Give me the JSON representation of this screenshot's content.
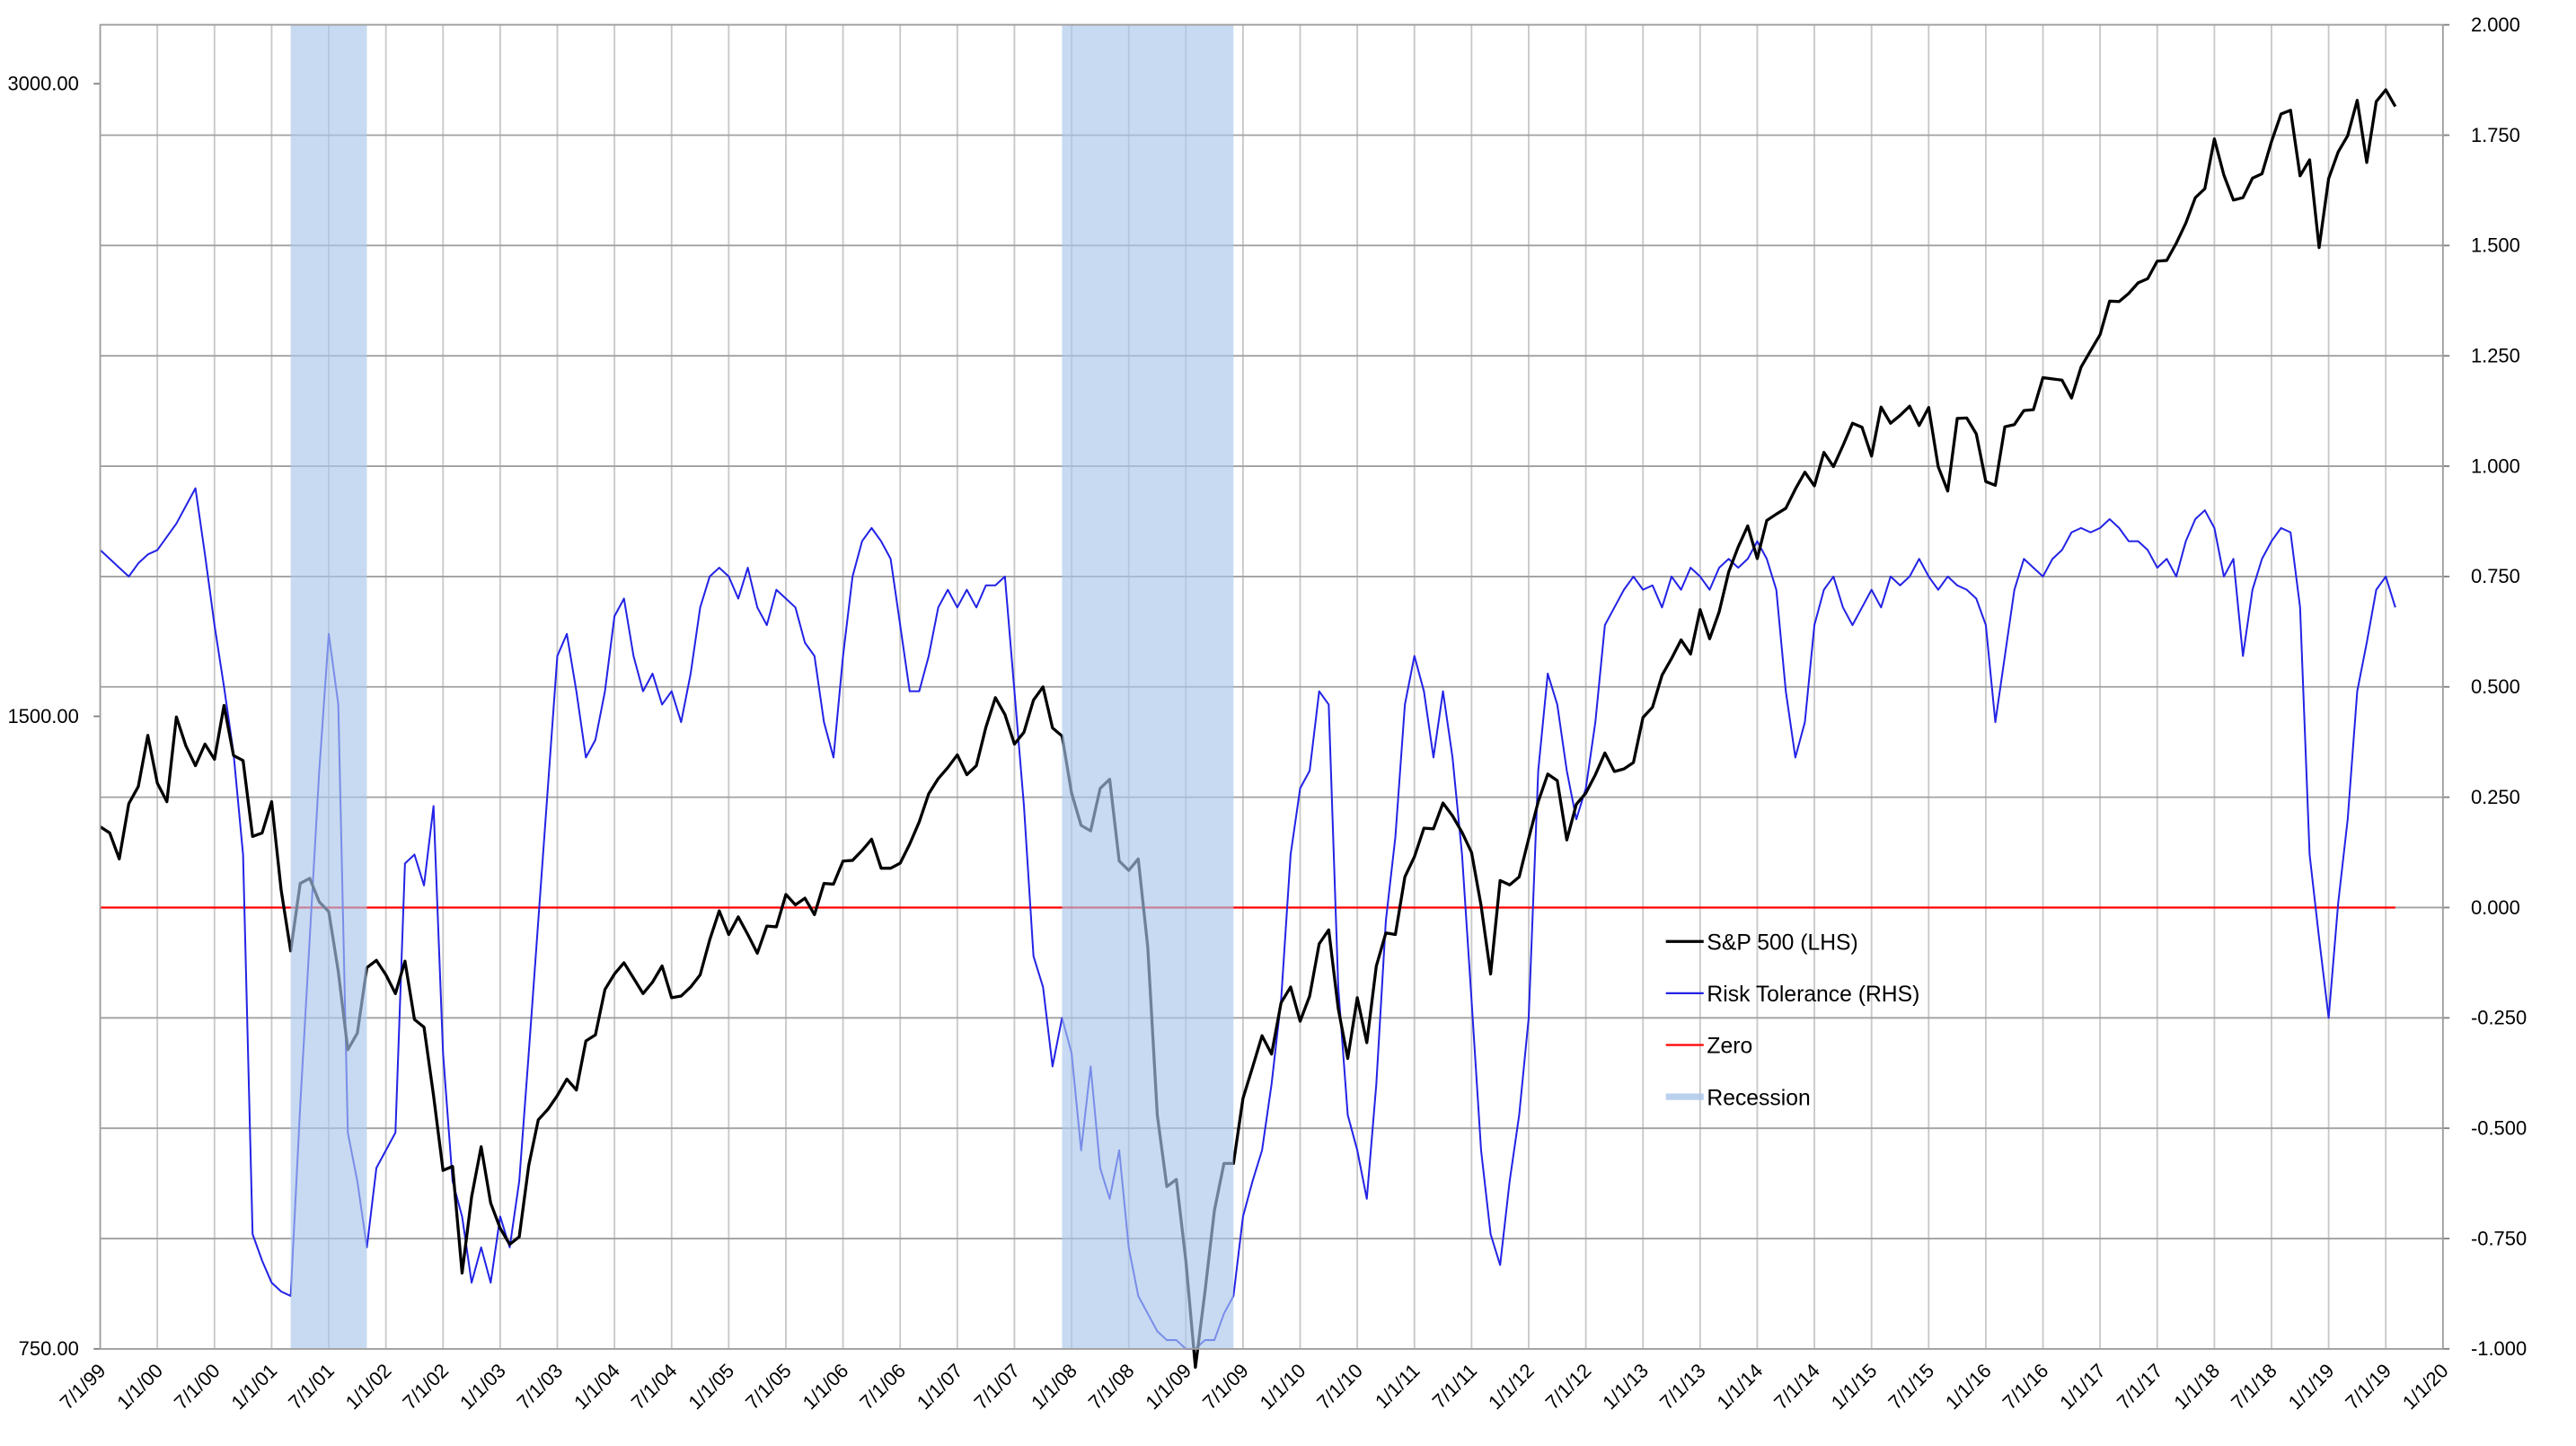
{
  "chart_data": {
    "type": "line",
    "x": [
      "7/1/99",
      "8/1/99",
      "9/1/99",
      "10/1/99",
      "11/1/99",
      "12/1/99",
      "1/1/00",
      "2/1/00",
      "3/1/00",
      "4/1/00",
      "5/1/00",
      "6/1/00",
      "7/1/00",
      "8/1/00",
      "9/1/00",
      "10/1/00",
      "11/1/00",
      "12/1/00",
      "1/1/01",
      "2/1/01",
      "3/1/01",
      "4/1/01",
      "5/1/01",
      "6/1/01",
      "7/1/01",
      "8/1/01",
      "9/1/01",
      "10/1/01",
      "11/1/01",
      "12/1/01",
      "1/1/02",
      "2/1/02",
      "3/1/02",
      "4/1/02",
      "5/1/02",
      "6/1/02",
      "7/1/02",
      "8/1/02",
      "9/1/02",
      "10/1/02",
      "11/1/02",
      "12/1/02",
      "1/1/03",
      "2/1/03",
      "3/1/03",
      "4/1/03",
      "5/1/03",
      "6/1/03",
      "7/1/03",
      "8/1/03",
      "9/1/03",
      "10/1/03",
      "11/1/03",
      "12/1/03",
      "1/1/04",
      "2/1/04",
      "3/1/04",
      "4/1/04",
      "5/1/04",
      "6/1/04",
      "7/1/04",
      "8/1/04",
      "9/1/04",
      "10/1/04",
      "11/1/04",
      "12/1/04",
      "1/1/05",
      "2/1/05",
      "3/1/05",
      "4/1/05",
      "5/1/05",
      "6/1/05",
      "7/1/05",
      "8/1/05",
      "9/1/05",
      "10/1/05",
      "11/1/05",
      "12/1/05",
      "1/1/06",
      "2/1/06",
      "3/1/06",
      "4/1/06",
      "5/1/06",
      "6/1/06",
      "7/1/06",
      "8/1/06",
      "9/1/06",
      "10/1/06",
      "11/1/06",
      "12/1/06",
      "1/1/07",
      "2/1/07",
      "3/1/07",
      "4/1/07",
      "5/1/07",
      "6/1/07",
      "7/1/07",
      "8/1/07",
      "9/1/07",
      "10/1/07",
      "11/1/07",
      "12/1/07",
      "1/1/08",
      "2/1/08",
      "3/1/08",
      "4/1/08",
      "5/1/08",
      "6/1/08",
      "7/1/08",
      "8/1/08",
      "9/1/08",
      "10/1/08",
      "11/1/08",
      "12/1/08",
      "1/1/09",
      "2/1/09",
      "3/1/09",
      "4/1/09",
      "5/1/09",
      "6/1/09",
      "7/1/09",
      "8/1/09",
      "9/1/09",
      "10/1/09",
      "11/1/09",
      "12/1/09",
      "1/1/10",
      "2/1/10",
      "3/1/10",
      "4/1/10",
      "5/1/10",
      "6/1/10",
      "7/1/10",
      "8/1/10",
      "9/1/10",
      "10/1/10",
      "11/1/10",
      "12/1/10",
      "1/1/11",
      "2/1/11",
      "3/1/11",
      "4/1/11",
      "5/1/11",
      "6/1/11",
      "7/1/11",
      "8/1/11",
      "9/1/11",
      "10/1/11",
      "11/1/11",
      "12/1/11",
      "1/1/12",
      "2/1/12",
      "3/1/12",
      "4/1/12",
      "5/1/12",
      "6/1/12",
      "7/1/12",
      "8/1/12",
      "9/1/12",
      "10/1/12",
      "11/1/12",
      "12/1/12",
      "1/1/13",
      "2/1/13",
      "3/1/13",
      "4/1/13",
      "5/1/13",
      "6/1/13",
      "7/1/13",
      "8/1/13",
      "9/1/13",
      "10/1/13",
      "11/1/13",
      "12/1/13",
      "1/1/14",
      "2/1/14",
      "3/1/14",
      "4/1/14",
      "5/1/14",
      "6/1/14",
      "7/1/14",
      "8/1/14",
      "9/1/14",
      "10/1/14",
      "11/1/14",
      "12/1/14",
      "1/1/15",
      "2/1/15",
      "3/1/15",
      "4/1/15",
      "5/1/15",
      "6/1/15",
      "7/1/15",
      "8/1/15",
      "9/1/15",
      "10/1/15",
      "11/1/15",
      "12/1/15",
      "1/1/16",
      "2/1/16",
      "3/1/16",
      "4/1/16",
      "5/1/16",
      "6/1/16",
      "7/1/16",
      "8/1/16",
      "9/1/16",
      "10/1/16",
      "11/1/16",
      "12/1/16",
      "1/1/17",
      "2/1/17",
      "3/1/17",
      "4/1/17",
      "5/1/17",
      "6/1/17",
      "7/1/17",
      "8/1/17",
      "9/1/17",
      "10/1/17",
      "11/1/17",
      "12/1/17",
      "1/1/18",
      "2/1/18",
      "3/1/18",
      "4/1/18",
      "5/1/18",
      "6/1/18",
      "7/1/18",
      "8/1/18",
      "9/1/18",
      "10/1/18",
      "11/1/18",
      "12/1/18",
      "1/1/19",
      "2/1/19",
      "3/1/19",
      "4/1/19",
      "5/1/19",
      "6/1/19",
      "7/1/19",
      "8/1/19"
    ],
    "series": [
      {
        "name": "S&P 500 (LHS)",
        "color": "#000000",
        "axis": "y",
        "values": [
          1329,
          1320,
          1283,
          1363,
          1389,
          1469,
          1394,
          1366,
          1499,
          1452,
          1421,
          1455,
          1431,
          1518,
          1437,
          1429,
          1315,
          1320,
          1366,
          1240,
          1160,
          1249,
          1256,
          1224,
          1211,
          1134,
          1041,
          1060,
          1139,
          1148,
          1130,
          1107,
          1147,
          1076,
          1067,
          990,
          912,
          916,
          815,
          886,
          936,
          880,
          856,
          841,
          848,
          917,
          964,
          975,
          990,
          1008,
          996,
          1051,
          1058,
          1112,
          1131,
          1145,
          1126,
          1107,
          1121,
          1141,
          1102,
          1104,
          1115,
          1130,
          1174,
          1212,
          1181,
          1204,
          1181,
          1157,
          1192,
          1191,
          1234,
          1220,
          1229,
          1207,
          1249,
          1248,
          1280,
          1281,
          1295,
          1311,
          1270,
          1270,
          1277,
          1304,
          1336,
          1378,
          1401,
          1418,
          1438,
          1407,
          1421,
          1482,
          1531,
          1503,
          1455,
          1474,
          1527,
          1549,
          1481,
          1468,
          1379,
          1331,
          1323,
          1386,
          1400,
          1280,
          1267,
          1283,
          1165,
          969,
          896,
          903,
          826,
          735,
          798,
          873,
          919,
          919,
          987,
          1021,
          1057,
          1036,
          1096,
          1115,
          1074,
          1104,
          1169,
          1187,
          1089,
          1031,
          1102,
          1049,
          1141,
          1183,
          1181,
          1258,
          1286,
          1327,
          1326,
          1364,
          1345,
          1321,
          1292,
          1219,
          1131,
          1253,
          1247,
          1258,
          1312,
          1366,
          1408,
          1398,
          1310,
          1362,
          1379,
          1407,
          1441,
          1412,
          1416,
          1426,
          1498,
          1515,
          1569,
          1598,
          1631,
          1606,
          1686,
          1633,
          1682,
          1757,
          1806,
          1848,
          1783,
          1859,
          1872,
          1884,
          1924,
          1960,
          1931,
          2003,
          1972,
          2018,
          2068,
          2059,
          1995,
          2105,
          2068,
          2086,
          2107,
          2063,
          2104,
          1972,
          1920,
          2079,
          2080,
          2044,
          1940,
          1932,
          2060,
          2065,
          2097,
          2099,
          2174,
          2171,
          2168,
          2126,
          2199,
          2239,
          2279,
          2364,
          2363,
          2384,
          2412,
          2423,
          2470,
          2472,
          2519,
          2575,
          2648,
          2674,
          2824,
          2714,
          2641,
          2648,
          2705,
          2718,
          2816,
          2902,
          2914,
          2712,
          2760,
          2507,
          2704,
          2784,
          2834,
          2946,
          2752,
          2942,
          2980,
          2926
        ]
      },
      {
        "name": "Risk Tolerance (RHS)",
        "color": "#2323e6",
        "axis": "y2",
        "values": [
          0.81,
          0.79,
          0.77,
          0.75,
          0.78,
          0.8,
          0.81,
          0.84,
          0.87,
          0.91,
          0.95,
          0.8,
          0.64,
          0.5,
          0.35,
          0.12,
          -0.74,
          -0.8,
          -0.85,
          -0.87,
          -0.88,
          -0.45,
          -0.07,
          0.31,
          0.62,
          0.46,
          -0.51,
          -0.62,
          -0.77,
          -0.59,
          -0.55,
          -0.51,
          0.1,
          0.12,
          0.05,
          0.23,
          -0.33,
          -0.62,
          -0.7,
          -0.85,
          -0.77,
          -0.85,
          -0.7,
          -0.77,
          -0.62,
          -0.33,
          -0.03,
          0.27,
          0.57,
          0.62,
          0.49,
          0.34,
          0.38,
          0.49,
          0.66,
          0.7,
          0.57,
          0.49,
          0.53,
          0.46,
          0.49,
          0.42,
          0.53,
          0.68,
          0.75,
          0.77,
          0.75,
          0.7,
          0.77,
          0.68,
          0.64,
          0.72,
          0.7,
          0.68,
          0.6,
          0.57,
          0.42,
          0.34,
          0.57,
          0.75,
          0.83,
          0.86,
          0.83,
          0.79,
          0.64,
          0.49,
          0.49,
          0.57,
          0.68,
          0.72,
          0.68,
          0.72,
          0.68,
          0.73,
          0.73,
          0.75,
          0.49,
          0.23,
          -0.11,
          -0.18,
          -0.36,
          -0.25,
          -0.33,
          -0.55,
          -0.36,
          -0.59,
          -0.66,
          -0.55,
          -0.77,
          -0.88,
          -0.92,
          -0.96,
          -0.98,
          -0.98,
          -1.0,
          -1.0,
          -0.98,
          -0.98,
          -0.92,
          -0.88,
          -0.7,
          -0.62,
          -0.55,
          -0.4,
          -0.21,
          0.12,
          0.27,
          0.31,
          0.49,
          0.46,
          -0.18,
          -0.47,
          -0.55,
          -0.66,
          -0.4,
          -0.03,
          0.16,
          0.46,
          0.57,
          0.49,
          0.34,
          0.49,
          0.34,
          0.12,
          -0.21,
          -0.55,
          -0.74,
          -0.81,
          -0.62,
          -0.47,
          -0.25,
          0.31,
          0.53,
          0.46,
          0.31,
          0.2,
          0.27,
          0.42,
          0.64,
          0.68,
          0.72,
          0.75,
          0.72,
          0.73,
          0.68,
          0.75,
          0.72,
          0.77,
          0.75,
          0.72,
          0.77,
          0.79,
          0.77,
          0.79,
          0.83,
          0.79,
          0.72,
          0.49,
          0.34,
          0.42,
          0.64,
          0.72,
          0.75,
          0.68,
          0.64,
          0.68,
          0.72,
          0.68,
          0.75,
          0.73,
          0.75,
          0.79,
          0.75,
          0.72,
          0.75,
          0.73,
          0.72,
          0.7,
          0.64,
          0.42,
          0.57,
          0.72,
          0.79,
          0.77,
          0.75,
          0.79,
          0.81,
          0.85,
          0.86,
          0.85,
          0.86,
          0.88,
          0.86,
          0.83,
          0.83,
          0.81,
          0.77,
          0.79,
          0.75,
          0.83,
          0.88,
          0.9,
          0.86,
          0.75,
          0.79,
          0.57,
          0.72,
          0.79,
          0.83,
          0.86,
          0.85,
          0.68,
          0.12,
          -0.07,
          -0.25,
          0.01,
          0.2,
          0.49,
          0.6,
          0.72,
          0.75,
          0.68
        ]
      }
    ],
    "reference_lines": [
      {
        "name": "Zero",
        "value": 0,
        "axis": "y2",
        "color": "#ff0000"
      }
    ],
    "shaded_regions": {
      "name": "Recession",
      "color": "#a9c6ea",
      "ranges": [
        [
          "3/1/01",
          "11/1/01"
        ],
        [
          "12/1/07",
          "6/1/09"
        ]
      ]
    },
    "xlim": [
      "7/1/99",
      "1/1/20"
    ],
    "xticks": [
      "7/1/99",
      "1/1/00",
      "7/1/00",
      "1/1/01",
      "7/1/01",
      "1/1/02",
      "7/1/02",
      "1/1/03",
      "7/1/03",
      "1/1/04",
      "7/1/04",
      "1/1/05",
      "7/1/05",
      "1/1/06",
      "7/1/06",
      "1/1/07",
      "7/1/07",
      "1/1/08",
      "7/1/08",
      "1/1/09",
      "7/1/09",
      "1/1/10",
      "7/1/10",
      "1/1/11",
      "7/1/11",
      "1/1/12",
      "7/1/12",
      "1/1/13",
      "7/1/13",
      "1/1/14",
      "7/1/14",
      "1/1/15",
      "7/1/15",
      "1/1/16",
      "7/1/16",
      "1/1/17",
      "7/1/17",
      "1/1/18",
      "7/1/18",
      "1/1/19",
      "7/1/19",
      "1/1/20"
    ],
    "ylim": [
      750,
      3200
    ],
    "y_log_base": 2,
    "yticks": [
      {
        "value": 750,
        "label": "750.00"
      },
      {
        "value": 1500,
        "label": "1500.00"
      },
      {
        "value": 3000,
        "label": "3000.00"
      }
    ],
    "y2lim": [
      -1,
      2
    ],
    "y2ticks": [
      {
        "value": -1,
        "label": "-1.000"
      },
      {
        "value": -0.75,
        "label": "-0.750"
      },
      {
        "value": -0.5,
        "label": "-0.500"
      },
      {
        "value": -0.25,
        "label": "-0.250"
      },
      {
        "value": 0,
        "label": "0.000"
      },
      {
        "value": 0.25,
        "label": "0.250"
      },
      {
        "value": 0.5,
        "label": "0.500"
      },
      {
        "value": 0.75,
        "label": "0.750"
      },
      {
        "value": 1,
        "label": "1.000"
      },
      {
        "value": 1.25,
        "label": "1.250"
      },
      {
        "value": 1.5,
        "label": "1.500"
      },
      {
        "value": 1.75,
        "label": "1.750"
      },
      {
        "value": 2,
        "label": "2.000"
      }
    ],
    "grid": true
  }
}
